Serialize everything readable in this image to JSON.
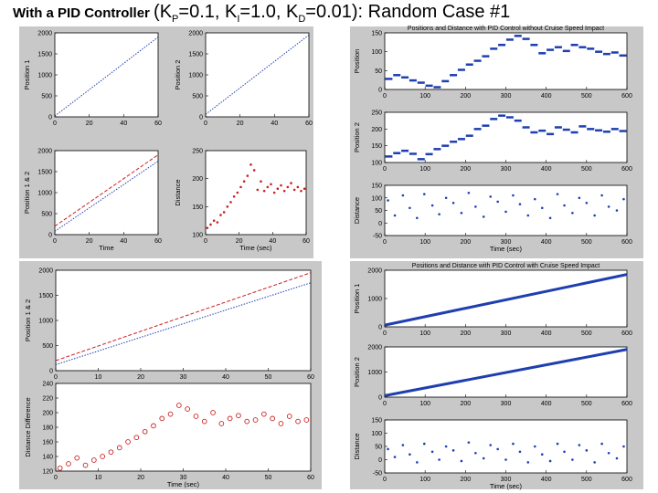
{
  "slide": {
    "title_main": "With a PID Controller ",
    "title_params": {
      "open": "(K",
      "p_sub": "P",
      "p_val": "=0.1, K",
      "i_sub": "I",
      "i_val": "=1.0, K",
      "d_sub": "D",
      "d_val": "=0.01): Random Case #1"
    }
  },
  "chart_data": [
    {
      "panel": "top-left",
      "type": "line",
      "title": "",
      "ylabel": "Position 1",
      "xlabel": "",
      "xlim": [
        0,
        60
      ],
      "ylim": [
        0,
        2000
      ],
      "xticks": [
        0,
        20,
        40,
        60
      ],
      "yticks": [
        0,
        500,
        1000,
        1500,
        2000
      ],
      "series": [
        {
          "color": "#1f3fb0",
          "style": "dotted",
          "x": [
            0,
            60
          ],
          "y": [
            20,
            1900
          ]
        }
      ]
    },
    {
      "panel": "top-left",
      "type": "line",
      "title": "",
      "ylabel": "Position 2",
      "xlabel": "",
      "xlim": [
        0,
        60
      ],
      "ylim": [
        0,
        2000
      ],
      "xticks": [
        0,
        20,
        40,
        60
      ],
      "yticks": [
        0,
        500,
        1000,
        1500,
        2000
      ],
      "series": [
        {
          "color": "#1f3fb0",
          "style": "dotted",
          "x": [
            0,
            60
          ],
          "y": [
            60,
            1950
          ]
        }
      ]
    },
    {
      "panel": "top-left",
      "type": "line",
      "title": "",
      "ylabel": "Position 1 & 2",
      "xlabel": "Time",
      "xlim": [
        0,
        60
      ],
      "ylim": [
        0,
        2000
      ],
      "xticks": [
        0,
        20,
        40,
        60
      ],
      "yticks": [
        0,
        500,
        1000,
        1500,
        2000
      ],
      "series": [
        {
          "color": "#cc2020",
          "style": "dashed",
          "x": [
            0,
            60
          ],
          "y": [
            200,
            1900
          ]
        },
        {
          "color": "#1f3fb0",
          "style": "dotted",
          "x": [
            0,
            60
          ],
          "y": [
            80,
            1750
          ]
        }
      ]
    },
    {
      "panel": "top-left",
      "type": "scatter",
      "title": "",
      "ylabel": "Distance",
      "xlabel": "Time (sec)",
      "xlim": [
        0,
        60
      ],
      "ylim": [
        100,
        250
      ],
      "xticks": [
        0,
        20,
        40,
        60
      ],
      "yticks": [
        100,
        150,
        200,
        250
      ],
      "series": [
        {
          "color": "#cc2020",
          "marker": "small",
          "x": [
            1,
            3,
            5,
            7,
            9,
            11,
            13,
            15,
            17,
            19,
            21,
            23,
            25,
            27,
            29,
            31,
            33,
            35,
            37,
            39,
            41,
            43,
            45,
            47,
            49,
            51,
            53,
            55,
            57,
            59
          ],
          "y": [
            112,
            118,
            125,
            122,
            135,
            140,
            150,
            158,
            168,
            175,
            185,
            195,
            205,
            225,
            215,
            180,
            195,
            178,
            185,
            190,
            175,
            182,
            188,
            178,
            185,
            192,
            180,
            185,
            178,
            182
          ]
        }
      ]
    },
    {
      "panel": "top-right",
      "type": "scatter",
      "title": "Positions and Distance with PID Control without Cruise Speed Impact",
      "ylabel": "Position",
      "xlabel": "",
      "xlim": [
        0,
        600
      ],
      "ylim": [
        0,
        150
      ],
      "xticks": [
        0,
        100,
        200,
        300,
        400,
        500,
        600
      ],
      "yticks": [
        0,
        50,
        100,
        150
      ],
      "series": [
        {
          "color": "#1f3fb0",
          "marker": "dash",
          "x": [
            10,
            30,
            50,
            70,
            90,
            110,
            130,
            150,
            170,
            190,
            210,
            230,
            250,
            270,
            290,
            310,
            330,
            350,
            370,
            390,
            410,
            430,
            450,
            470,
            490,
            510,
            530,
            550,
            570,
            590
          ],
          "y": [
            28,
            38,
            32,
            24,
            18,
            10,
            6,
            22,
            38,
            52,
            66,
            76,
            88,
            108,
            118,
            132,
            142,
            134,
            118,
            96,
            105,
            112,
            102,
            118,
            112,
            108,
            100,
            94,
            98,
            90
          ]
        }
      ]
    },
    {
      "panel": "top-right",
      "type": "scatter",
      "title": "",
      "ylabel": "Position 2",
      "xlabel": "",
      "xlim": [
        0,
        600
      ],
      "ylim": [
        100,
        250
      ],
      "xticks": [
        0,
        100,
        200,
        300,
        400,
        500,
        600
      ],
      "yticks": [
        100,
        150,
        200,
        250
      ],
      "series": [
        {
          "color": "#1f3fb0",
          "marker": "dash",
          "x": [
            10,
            30,
            50,
            70,
            90,
            110,
            130,
            150,
            170,
            190,
            210,
            230,
            250,
            270,
            290,
            310,
            330,
            350,
            370,
            390,
            410,
            430,
            450,
            470,
            490,
            510,
            530,
            550,
            570,
            590
          ],
          "y": [
            118,
            128,
            135,
            126,
            110,
            125,
            140,
            150,
            162,
            170,
            180,
            200,
            210,
            230,
            240,
            235,
            225,
            205,
            190,
            195,
            185,
            205,
            198,
            190,
            208,
            200,
            196,
            192,
            200,
            194
          ]
        }
      ]
    },
    {
      "panel": "top-right",
      "type": "scatter",
      "title": "",
      "ylabel": "Distance",
      "xlabel": "Time (sec)",
      "xlim": [
        0,
        600
      ],
      "ylim": [
        -50,
        150
      ],
      "xticks": [
        0,
        100,
        200,
        300,
        400,
        500,
        600
      ],
      "yticks": [
        -50,
        0,
        50,
        100,
        150
      ],
      "series": [
        {
          "color": "#1f3fb0",
          "marker": "small",
          "x": [
            8,
            25,
            45,
            62,
            80,
            98,
            118,
            135,
            152,
            170,
            190,
            208,
            225,
            245,
            262,
            280,
            300,
            318,
            335,
            355,
            372,
            390,
            410,
            428,
            445,
            465,
            482,
            500,
            520,
            538,
            555,
            575,
            592
          ],
          "y": [
            90,
            30,
            110,
            60,
            20,
            115,
            70,
            35,
            100,
            80,
            40,
            120,
            65,
            25,
            105,
            85,
            45,
            110,
            75,
            30,
            95,
            60,
            20,
            115,
            70,
            40,
            100,
            80,
            30,
            110,
            65,
            50,
            95
          ]
        }
      ]
    },
    {
      "panel": "bottom-left",
      "type": "line",
      "title": "",
      "ylabel": "Position 1 & 2",
      "xlabel": "",
      "xlim": [
        0,
        60
      ],
      "ylim": [
        0,
        2000
      ],
      "xticks": [
        0,
        10,
        20,
        30,
        40,
        50,
        60
      ],
      "yticks": [
        0,
        500,
        1000,
        1500,
        2000
      ],
      "series": [
        {
          "color": "#cc2020",
          "style": "dashed",
          "x": [
            0,
            60
          ],
          "y": [
            200,
            1950
          ]
        },
        {
          "color": "#1f3fb0",
          "style": "dotted",
          "x": [
            0,
            60
          ],
          "y": [
            120,
            1750
          ]
        }
      ]
    },
    {
      "panel": "bottom-left",
      "type": "scatter",
      "title": "",
      "ylabel": "Distance Difference",
      "xlabel": "Time (sec)",
      "xlim": [
        0,
        60
      ],
      "ylim": [
        120,
        240
      ],
      "xticks": [
        0,
        10,
        20,
        30,
        40,
        50,
        60
      ],
      "yticks": [
        120,
        140,
        160,
        180,
        200,
        220,
        240
      ],
      "series": [
        {
          "color": "#cc2020",
          "marker": "circle",
          "x": [
            1,
            3,
            5,
            7,
            9,
            11,
            13,
            15,
            17,
            19,
            21,
            23,
            25,
            27,
            29,
            31,
            33,
            35,
            37,
            39,
            41,
            43,
            45,
            47,
            49,
            51,
            53,
            55,
            57,
            59
          ],
          "y": [
            124,
            130,
            138,
            128,
            135,
            140,
            146,
            152,
            160,
            166,
            174,
            182,
            192,
            198,
            210,
            205,
            195,
            188,
            200,
            185,
            192,
            196,
            188,
            190,
            198,
            192,
            185,
            195,
            188,
            190
          ]
        }
      ]
    },
    {
      "panel": "bottom-right",
      "type": "line",
      "title": "Positions and Distance with PID Control with Cruise Speed Impact",
      "ylabel": "Position 1",
      "xlabel": "",
      "xlim": [
        0,
        600
      ],
      "ylim": [
        0,
        2000
      ],
      "xticks": [
        0,
        100,
        200,
        300,
        400,
        500,
        600
      ],
      "yticks": [
        0,
        1000,
        2000
      ],
      "series": [
        {
          "color": "#1f3fb0",
          "style": "thick",
          "x": [
            0,
            600
          ],
          "y": [
            60,
            1850
          ]
        }
      ]
    },
    {
      "panel": "bottom-right",
      "type": "line",
      "title": "",
      "ylabel": "Position 2",
      "xlabel": "",
      "xlim": [
        0,
        600
      ],
      "ylim": [
        0,
        2000
      ],
      "xticks": [
        0,
        100,
        200,
        300,
        400,
        500,
        600
      ],
      "yticks": [
        0,
        1000,
        2000
      ],
      "series": [
        {
          "color": "#1f3fb0",
          "style": "thick",
          "x": [
            0,
            600
          ],
          "y": [
            60,
            1900
          ]
        }
      ]
    },
    {
      "panel": "bottom-right",
      "type": "scatter",
      "title": "",
      "ylabel": "Distance",
      "xlabel": "Time (sec)",
      "xlim": [
        0,
        600
      ],
      "ylim": [
        -50,
        150
      ],
      "xticks": [
        0,
        100,
        200,
        300,
        400,
        500,
        600
      ],
      "yticks": [
        -50,
        0,
        50,
        100,
        150
      ],
      "series": [
        {
          "color": "#1f3fb0",
          "marker": "small",
          "x": [
            8,
            25,
            45,
            62,
            80,
            98,
            118,
            135,
            152,
            170,
            190,
            208,
            225,
            245,
            262,
            280,
            300,
            318,
            335,
            355,
            372,
            390,
            410,
            428,
            445,
            465,
            482,
            500,
            520,
            538,
            555,
            575,
            592
          ],
          "y": [
            40,
            10,
            55,
            20,
            -10,
            60,
            30,
            0,
            50,
            35,
            -5,
            65,
            25,
            5,
            55,
            40,
            0,
            60,
            30,
            -10,
            50,
            20,
            -5,
            60,
            30,
            0,
            55,
            35,
            -10,
            60,
            25,
            5,
            50
          ]
        }
      ]
    }
  ]
}
